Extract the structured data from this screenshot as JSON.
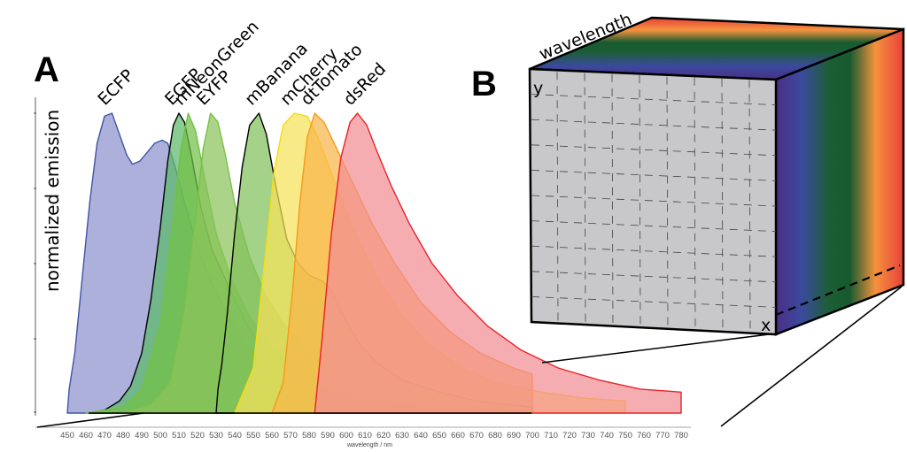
{
  "panel_a": {
    "letter": "A",
    "ylabel": "normalized emission"
  },
  "panel_b": {
    "letter": "B",
    "axis_wavelength": "wavelength",
    "axis_y": "y",
    "axis_x": "x",
    "spectrum_colors": [
      "#4a2f86",
      "#3a4a9e",
      "#1c5e34",
      "#175a30",
      "#f5923e",
      "#e8413a"
    ]
  },
  "chart_data": {
    "type": "area",
    "title": "",
    "xlabel": "wavelength / nm",
    "ylabel": "normalized emission",
    "xlim": [
      450,
      780
    ],
    "ylim": [
      0,
      1
    ],
    "x_ticks": [
      450,
      460,
      470,
      480,
      490,
      500,
      510,
      520,
      530,
      540,
      550,
      560,
      570,
      580,
      590,
      600,
      610,
      620,
      630,
      640,
      650,
      660,
      670,
      680,
      690,
      700,
      710,
      720,
      730,
      740,
      750,
      760,
      770,
      780
    ],
    "grid": false,
    "legend": "labels above peaks",
    "series": [
      {
        "name": "ECFP",
        "fill": "#8e92cc",
        "stroke": "#3d55a6",
        "range": [
          450,
          700
        ],
        "points": [
          [
            450,
            0
          ],
          [
            451,
            0.08
          ],
          [
            454,
            0.2
          ],
          [
            458,
            0.45
          ],
          [
            462,
            0.7
          ],
          [
            466,
            0.9
          ],
          [
            470,
            0.99
          ],
          [
            474,
            1.0
          ],
          [
            478,
            0.93
          ],
          [
            482,
            0.86
          ],
          [
            485,
            0.83
          ],
          [
            489,
            0.84
          ],
          [
            493,
            0.87
          ],
          [
            497,
            0.9
          ],
          [
            501,
            0.91
          ],
          [
            504,
            0.9
          ],
          [
            508,
            0.82
          ],
          [
            514,
            0.68
          ],
          [
            520,
            0.55
          ],
          [
            528,
            0.43
          ],
          [
            536,
            0.33
          ],
          [
            546,
            0.24
          ],
          [
            558,
            0.17
          ],
          [
            572,
            0.11
          ],
          [
            590,
            0.07
          ],
          [
            620,
            0.04
          ],
          [
            660,
            0.02
          ],
          [
            700,
            0.01
          ]
        ]
      },
      {
        "name": "EGFP",
        "fill": "#5cba6a",
        "stroke": "#000000",
        "range": [
          462,
          700
        ],
        "points": [
          [
            462,
            0
          ],
          [
            470,
            0.01
          ],
          [
            478,
            0.04
          ],
          [
            484,
            0.09
          ],
          [
            490,
            0.2
          ],
          [
            495,
            0.38
          ],
          [
            500,
            0.62
          ],
          [
            504,
            0.84
          ],
          [
            507,
            0.96
          ],
          [
            510,
            1.0
          ],
          [
            513,
            0.97
          ],
          [
            517,
            0.85
          ],
          [
            522,
            0.68
          ],
          [
            528,
            0.54
          ],
          [
            534,
            0.46
          ],
          [
            540,
            0.38
          ],
          [
            548,
            0.28
          ],
          [
            556,
            0.2
          ],
          [
            566,
            0.14
          ],
          [
            580,
            0.09
          ],
          [
            600,
            0.05
          ],
          [
            630,
            0.03
          ],
          [
            660,
            0.015
          ],
          [
            700,
            0.005
          ]
        ]
      },
      {
        "name": "mNeonGreen",
        "fill": "#72c045",
        "stroke": "#73c04a",
        "range": [
          460,
          700
        ],
        "points": [
          [
            460,
            0
          ],
          [
            480,
            0.02
          ],
          [
            490,
            0.08
          ],
          [
            500,
            0.3
          ],
          [
            506,
            0.6
          ],
          [
            511,
            0.88
          ],
          [
            515,
            1.0
          ],
          [
            519,
            0.94
          ],
          [
            524,
            0.78
          ],
          [
            530,
            0.6
          ],
          [
            538,
            0.45
          ],
          [
            548,
            0.32
          ],
          [
            560,
            0.22
          ],
          [
            574,
            0.14
          ],
          [
            590,
            0.08
          ],
          [
            620,
            0.04
          ],
          [
            660,
            0.02
          ],
          [
            700,
            0.01
          ]
        ]
      },
      {
        "name": "EYFP",
        "fill": "#8cc45a",
        "stroke": "#7bc04b",
        "range": [
          480,
          700
        ],
        "points": [
          [
            480,
            0
          ],
          [
            495,
            0.03
          ],
          [
            505,
            0.1
          ],
          [
            513,
            0.35
          ],
          [
            519,
            0.66
          ],
          [
            523,
            0.88
          ],
          [
            527,
            1.0
          ],
          [
            531,
            0.97
          ],
          [
            535,
            0.86
          ],
          [
            540,
            0.7
          ],
          [
            548,
            0.52
          ],
          [
            556,
            0.4
          ],
          [
            566,
            0.3
          ],
          [
            578,
            0.21
          ],
          [
            592,
            0.14
          ],
          [
            610,
            0.09
          ],
          [
            640,
            0.05
          ],
          [
            670,
            0.03
          ],
          [
            700,
            0.02
          ]
        ]
      },
      {
        "name": "mBanana",
        "fill": "#7fc05a",
        "stroke": "#000000",
        "range": [
          530,
          700
        ],
        "points": [
          [
            530,
            0
          ],
          [
            531,
            0.08
          ],
          [
            533,
            0.16
          ],
          [
            536,
            0.33
          ],
          [
            540,
            0.6
          ],
          [
            544,
            0.82
          ],
          [
            548,
            0.96
          ],
          [
            553,
            1.0
          ],
          [
            557,
            0.93
          ],
          [
            562,
            0.76
          ],
          [
            568,
            0.58
          ],
          [
            574,
            0.5
          ],
          [
            580,
            0.46
          ],
          [
            587,
            0.44
          ],
          [
            592,
            0.41
          ],
          [
            598,
            0.33
          ],
          [
            606,
            0.24
          ],
          [
            616,
            0.17
          ],
          [
            630,
            0.11
          ],
          [
            650,
            0.07
          ],
          [
            670,
            0.04
          ],
          [
            700,
            0.02
          ]
        ]
      },
      {
        "name": "mCherry",
        "fill": "#f6e25a",
        "stroke": "#f6dc10",
        "range": [
          540,
          750
        ],
        "points": [
          [
            540,
            0
          ],
          [
            550,
            0.15
          ],
          [
            556,
            0.5
          ],
          [
            561,
            0.8
          ],
          [
            566,
            0.96
          ],
          [
            572,
            1.0
          ],
          [
            579,
            0.99
          ],
          [
            584,
            0.93
          ],
          [
            592,
            0.8
          ],
          [
            602,
            0.64
          ],
          [
            614,
            0.48
          ],
          [
            628,
            0.34
          ],
          [
            644,
            0.23
          ],
          [
            662,
            0.15
          ],
          [
            682,
            0.1
          ],
          [
            705,
            0.07
          ],
          [
            728,
            0.05
          ],
          [
            750,
            0.04
          ]
        ]
      },
      {
        "name": "dtTomato",
        "fill": "#f7b54a",
        "stroke": "#f59a1a",
        "range": [
          560,
          700
        ],
        "points": [
          [
            560,
            0
          ],
          [
            566,
            0.1
          ],
          [
            571,
            0.4
          ],
          [
            575,
            0.7
          ],
          [
            579,
            0.92
          ],
          [
            583,
            1.0
          ],
          [
            588,
            0.97
          ],
          [
            595,
            0.88
          ],
          [
            604,
            0.76
          ],
          [
            614,
            0.63
          ],
          [
            626,
            0.5
          ],
          [
            640,
            0.37
          ],
          [
            656,
            0.27
          ],
          [
            672,
            0.2
          ],
          [
            690,
            0.15
          ],
          [
            700,
            0.13
          ]
        ]
      },
      {
        "name": "dsRed",
        "fill": "#f28e94",
        "stroke": "#e8232a",
        "range": [
          583,
          780
        ],
        "points": [
          [
            583,
            0
          ],
          [
            587,
            0.25
          ],
          [
            592,
            0.6
          ],
          [
            597,
            0.85
          ],
          [
            602,
            0.97
          ],
          [
            606,
            1.0
          ],
          [
            611,
            0.96
          ],
          [
            616,
            0.88
          ],
          [
            624,
            0.76
          ],
          [
            634,
            0.63
          ],
          [
            646,
            0.5
          ],
          [
            660,
            0.39
          ],
          [
            676,
            0.29
          ],
          [
            694,
            0.21
          ],
          [
            714,
            0.15
          ],
          [
            736,
            0.11
          ],
          [
            758,
            0.08
          ],
          [
            780,
            0.07
          ]
        ]
      }
    ]
  }
}
